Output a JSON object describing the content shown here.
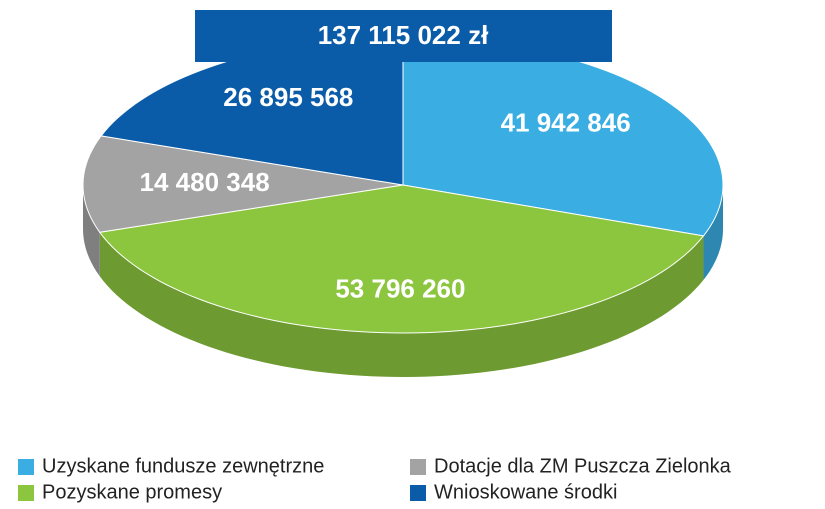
{
  "chart_data": {
    "type": "pie",
    "title": "137 115 022 zł",
    "categories": [
      "Uzyskane fundusze zewnętrzne",
      "Pozyskane promesy",
      "Dotacje dla ZM Puszcza Zielonka",
      "Wnioskowane środki"
    ],
    "values": [
      41942846,
      53796260,
      14480348,
      26895568
    ],
    "value_labels": [
      "41 942 846",
      "53 796 260",
      "14 480 348",
      "26 895 568"
    ],
    "colors": [
      "#3aaee2",
      "#8cc63f",
      "#a3a3a3",
      "#0b5ca8"
    ]
  }
}
